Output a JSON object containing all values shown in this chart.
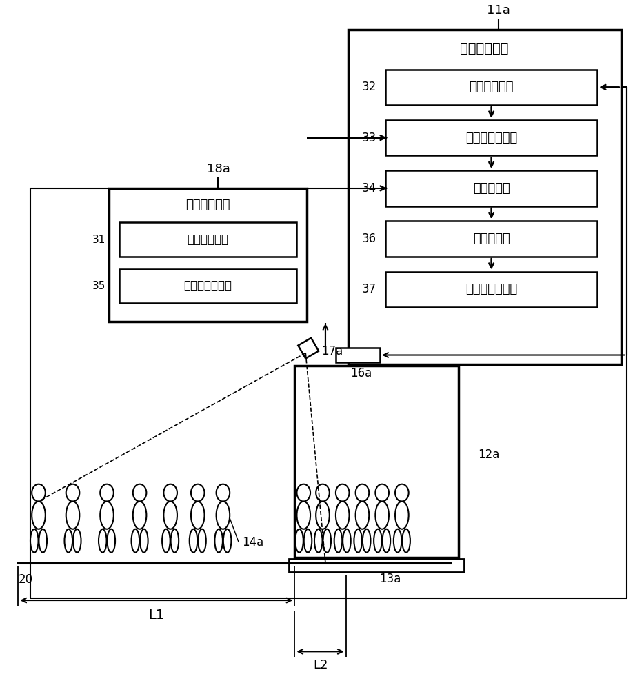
{
  "bg_color": "#ffffff",
  "line_color": "#000000",
  "title_11a": "11a",
  "label_outer_box": "轿厢控制装置",
  "label_32": "乘坐率检测部",
  "label_33": "能否乘坐判定部",
  "label_34": "通知控制部",
  "label_36": "运行控制部",
  "label_37": "虚拟呼叫登记部",
  "label_18a": "18a",
  "label_img_device": "图像处理装置",
  "label_31": "乘梯处检测部",
  "label_35": "乘坐状态检测部",
  "label_16a": "16a",
  "label_17a": "17a",
  "label_12a": "12a",
  "label_13a": "13a",
  "label_14a": "14a",
  "label_20": "20",
  "label_L1": "L1",
  "label_L2": "L2",
  "num_32": "32",
  "num_33": "33",
  "num_34": "34",
  "num_36": "36",
  "num_37": "37",
  "num_31": "31",
  "num_35": "35"
}
